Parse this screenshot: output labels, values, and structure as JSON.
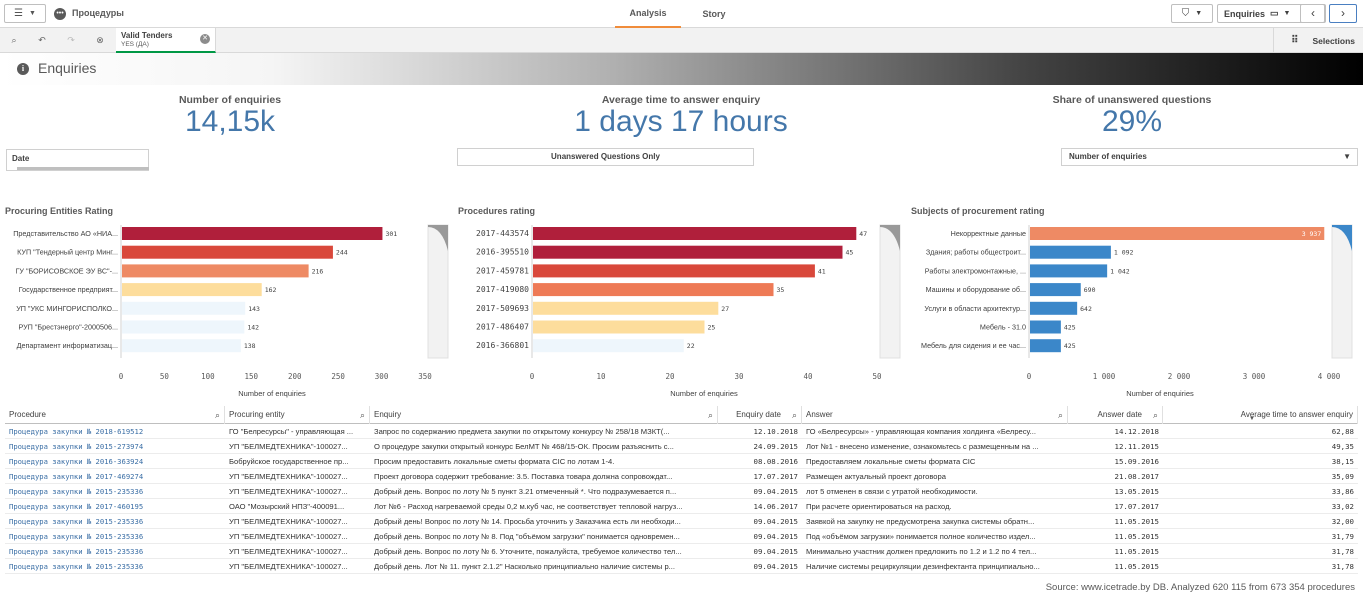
{
  "app": {
    "name": "Процедуры"
  },
  "tabs": [
    {
      "label": "Analysis",
      "active": true
    },
    {
      "label": "Story",
      "active": false
    }
  ],
  "sheet_nav": {
    "label": "Enquiries"
  },
  "selection_bar": {
    "chip_title": "Valid Tenders",
    "chip_value": "YES (ДА)",
    "selections_label": "Selections"
  },
  "sheet": {
    "title": "Enquiries",
    "header_gradient": [
      "#ffffff",
      "#000000"
    ]
  },
  "kpis": [
    {
      "label": "Number of enquiries",
      "value": "14,15k"
    },
    {
      "label": "Average time to answer enquiry",
      "value": "1 days 17 hours"
    },
    {
      "label": "Share of unanswered questions",
      "value": "29%"
    }
  ],
  "filters": {
    "date_label": "Date",
    "unanswered_label": "Unanswered Questions Only",
    "measure_label": "Number of enquiries"
  },
  "chart_data": [
    {
      "type": "bar",
      "orientation": "horizontal",
      "title": "Procuring Entities Rating",
      "xlabel": "Number of enquiries",
      "categories": [
        "Представительство АО «НИА...",
        "КУП \"Тендерный центр Минг...",
        "ГУ \"БОРИСОВСКОЕ ЭУ ВС\"-...",
        "Государственное предприят...",
        "УП \"УКС МИНГОРИСПОЛКО...",
        "РУП \"Брестэнерго\"-2000506...",
        "Департамент информатизац..."
      ],
      "values": [
        301,
        244,
        216,
        162,
        143,
        142,
        138
      ],
      "colors": [
        "#b01f3b",
        "#d9483b",
        "#ee8a64",
        "#fddd9c",
        "#eef6fc",
        "#eef6fc",
        "#eef6fc"
      ],
      "xlim": [
        0,
        350
      ],
      "xticks": [
        "0",
        "50",
        "100",
        "150",
        "200",
        "250",
        "300",
        "350"
      ]
    },
    {
      "type": "bar",
      "orientation": "horizontal",
      "title": "Procedures rating",
      "xlabel": "Number of enquiries",
      "categories": [
        "2017-443574",
        "2016-395510",
        "2017-459781",
        "2017-419080",
        "2017-509693",
        "2017-486407",
        "2016-366801"
      ],
      "values": [
        47,
        45,
        41,
        35,
        27,
        25,
        22
      ],
      "colors": [
        "#b01f3b",
        "#b01f3b",
        "#d9483b",
        "#ee7a56",
        "#fddd9c",
        "#fddd9c",
        "#eef6fc"
      ],
      "xlim": [
        0,
        50
      ],
      "xticks": [
        "0",
        "10",
        "20",
        "30",
        "40",
        "50"
      ]
    },
    {
      "type": "bar",
      "orientation": "horizontal",
      "title": "Subjects of procurement rating",
      "xlabel": "Number of enquiries",
      "categories": [
        "Некорректные данные",
        "Здания; работы общестроит...",
        "Работы электромонтажные, ...",
        "Машины и оборудование об...",
        "Услуги в области архитектур...",
        "Мебель - 31.0",
        "Мебель для сидения и ее час..."
      ],
      "values": [
        3937,
        1092,
        1042,
        690,
        642,
        425,
        425
      ],
      "value_labels": [
        "3 937",
        "1 092",
        "1 042",
        "690",
        "642",
        "425",
        "425"
      ],
      "colors": [
        "#ee8a64",
        "#3b87c9",
        "#3b87c9",
        "#3b87c9",
        "#3b87c9",
        "#3b87c9",
        "#3b87c9"
      ],
      "xlim": [
        0,
        4000
      ],
      "xticks": [
        "0",
        "1 000",
        "2 000",
        "3 000",
        "4 000"
      ]
    }
  ],
  "table": {
    "columns": [
      "Procedure",
      "Procuring entity",
      "Enquiry",
      "Enquiry date",
      "Answer",
      "Answer date",
      "Average time to answer enquiry"
    ],
    "rows": [
      [
        "Процедура закупки № 2018-619512",
        "ГО \"Белресурсы\" - управляющая ...",
        "Запрос по содержанию предмета закупки по открытому конкурсу № 258/18 МЗКТ(...",
        "12.10.2018",
        "ГО «Белресурсы» - управляющая компания холдинга «Белресу...",
        "14.12.2018",
        "62,88"
      ],
      [
        "Процедура закупки № 2015-273974",
        "УП \"БЕЛМЕДТЕХНИКА\"-100027...",
        "О процедуре закупки открытый конкурс БелМТ № 468/15-ОК. Просим разъяснить с...",
        "24.09.2015",
        "Лот №1 - внесено изменение, ознакомьтесь с размещенным на ...",
        "12.11.2015",
        "49,35"
      ],
      [
        "Процедура закупки № 2016-363924",
        "Бобруйское государственное пр...",
        "Просим предоставить локальные сметы формата CIC по лотам 1-4.",
        "08.08.2016",
        "Предоставляем локальные сметы формата CIC",
        "15.09.2016",
        "38,15"
      ],
      [
        "Процедура закупки № 2017-469274",
        "УП \"БЕЛМЕДТЕХНИКА\"-100027...",
        "Проект договора содержит требование: 3.5. Поставка товара должна сопровождат...",
        "17.07.2017",
        "Размещен актуальный проект договора",
        "21.08.2017",
        "35,09"
      ],
      [
        "Процедура закупки № 2015-235336",
        "УП \"БЕЛМЕДТЕХНИКА\"-100027...",
        "Добрый день. Вопрос по лоту № 5 пункт 3.21 отмеченный *. Что подразумевается п...",
        "09.04.2015",
        "лот 5 отменен в связи с утратой необходимости.",
        "13.05.2015",
        "33,86"
      ],
      [
        "Процедура закупки № 2017-460195",
        "ОАО \"Мозырский НПЗ\"-400091...",
        "Лот №6 - Расход нагреваемой среды 0,2 м.куб час, не соответствует тепловой нагруз...",
        "14.06.2017",
        "При расчете ориентироваться на расход.",
        "17.07.2017",
        "33,02"
      ],
      [
        "Процедура закупки № 2015-235336",
        "УП \"БЕЛМЕДТЕХНИКА\"-100027...",
        "Добрый день! Вопрос по лоту № 14. Просьба уточнить у Заказчика есть ли необходи...",
        "09.04.2015",
        "Заявкой на закупку не предусмотрена закупка системы обратн...",
        "11.05.2015",
        "32,00"
      ],
      [
        "Процедура закупки № 2015-235336",
        "УП \"БЕЛМЕДТЕХНИКА\"-100027...",
        "Добрый день. Вопрос по лоту № 8. Под \"объёмом загрузки\" понимается одновремен...",
        "09.04.2015",
        "Под «объёмом загрузки» понимается полное количество издел...",
        "11.05.2015",
        "31,79"
      ],
      [
        "Процедура закупки № 2015-235336",
        "УП \"БЕЛМЕДТЕХНИКА\"-100027...",
        "Добрый день. Вопрос по лоту № 6. Уточните, пожалуйста, требуемое количество тел...",
        "09.04.2015",
        "Минимально участник должен предложить по 1.2 и 1.2 по 4 тел...",
        "11.05.2015",
        "31,78"
      ],
      [
        "Процедура закупки № 2015-235336",
        "УП \"БЕЛМЕДТЕХНИКА\"-100027...",
        "Добрый день. Лот № 11. пункт 2.1.2\" Насколько принципиально наличие системы р...",
        "09.04.2015",
        "Наличие системы рециркуляции дезинфектанта принципиально...",
        "11.05.2015",
        "31,78"
      ]
    ]
  },
  "source_note": "Source: www.icetrade.by DB. Analyzed 620 115 from 673 354 procedures"
}
